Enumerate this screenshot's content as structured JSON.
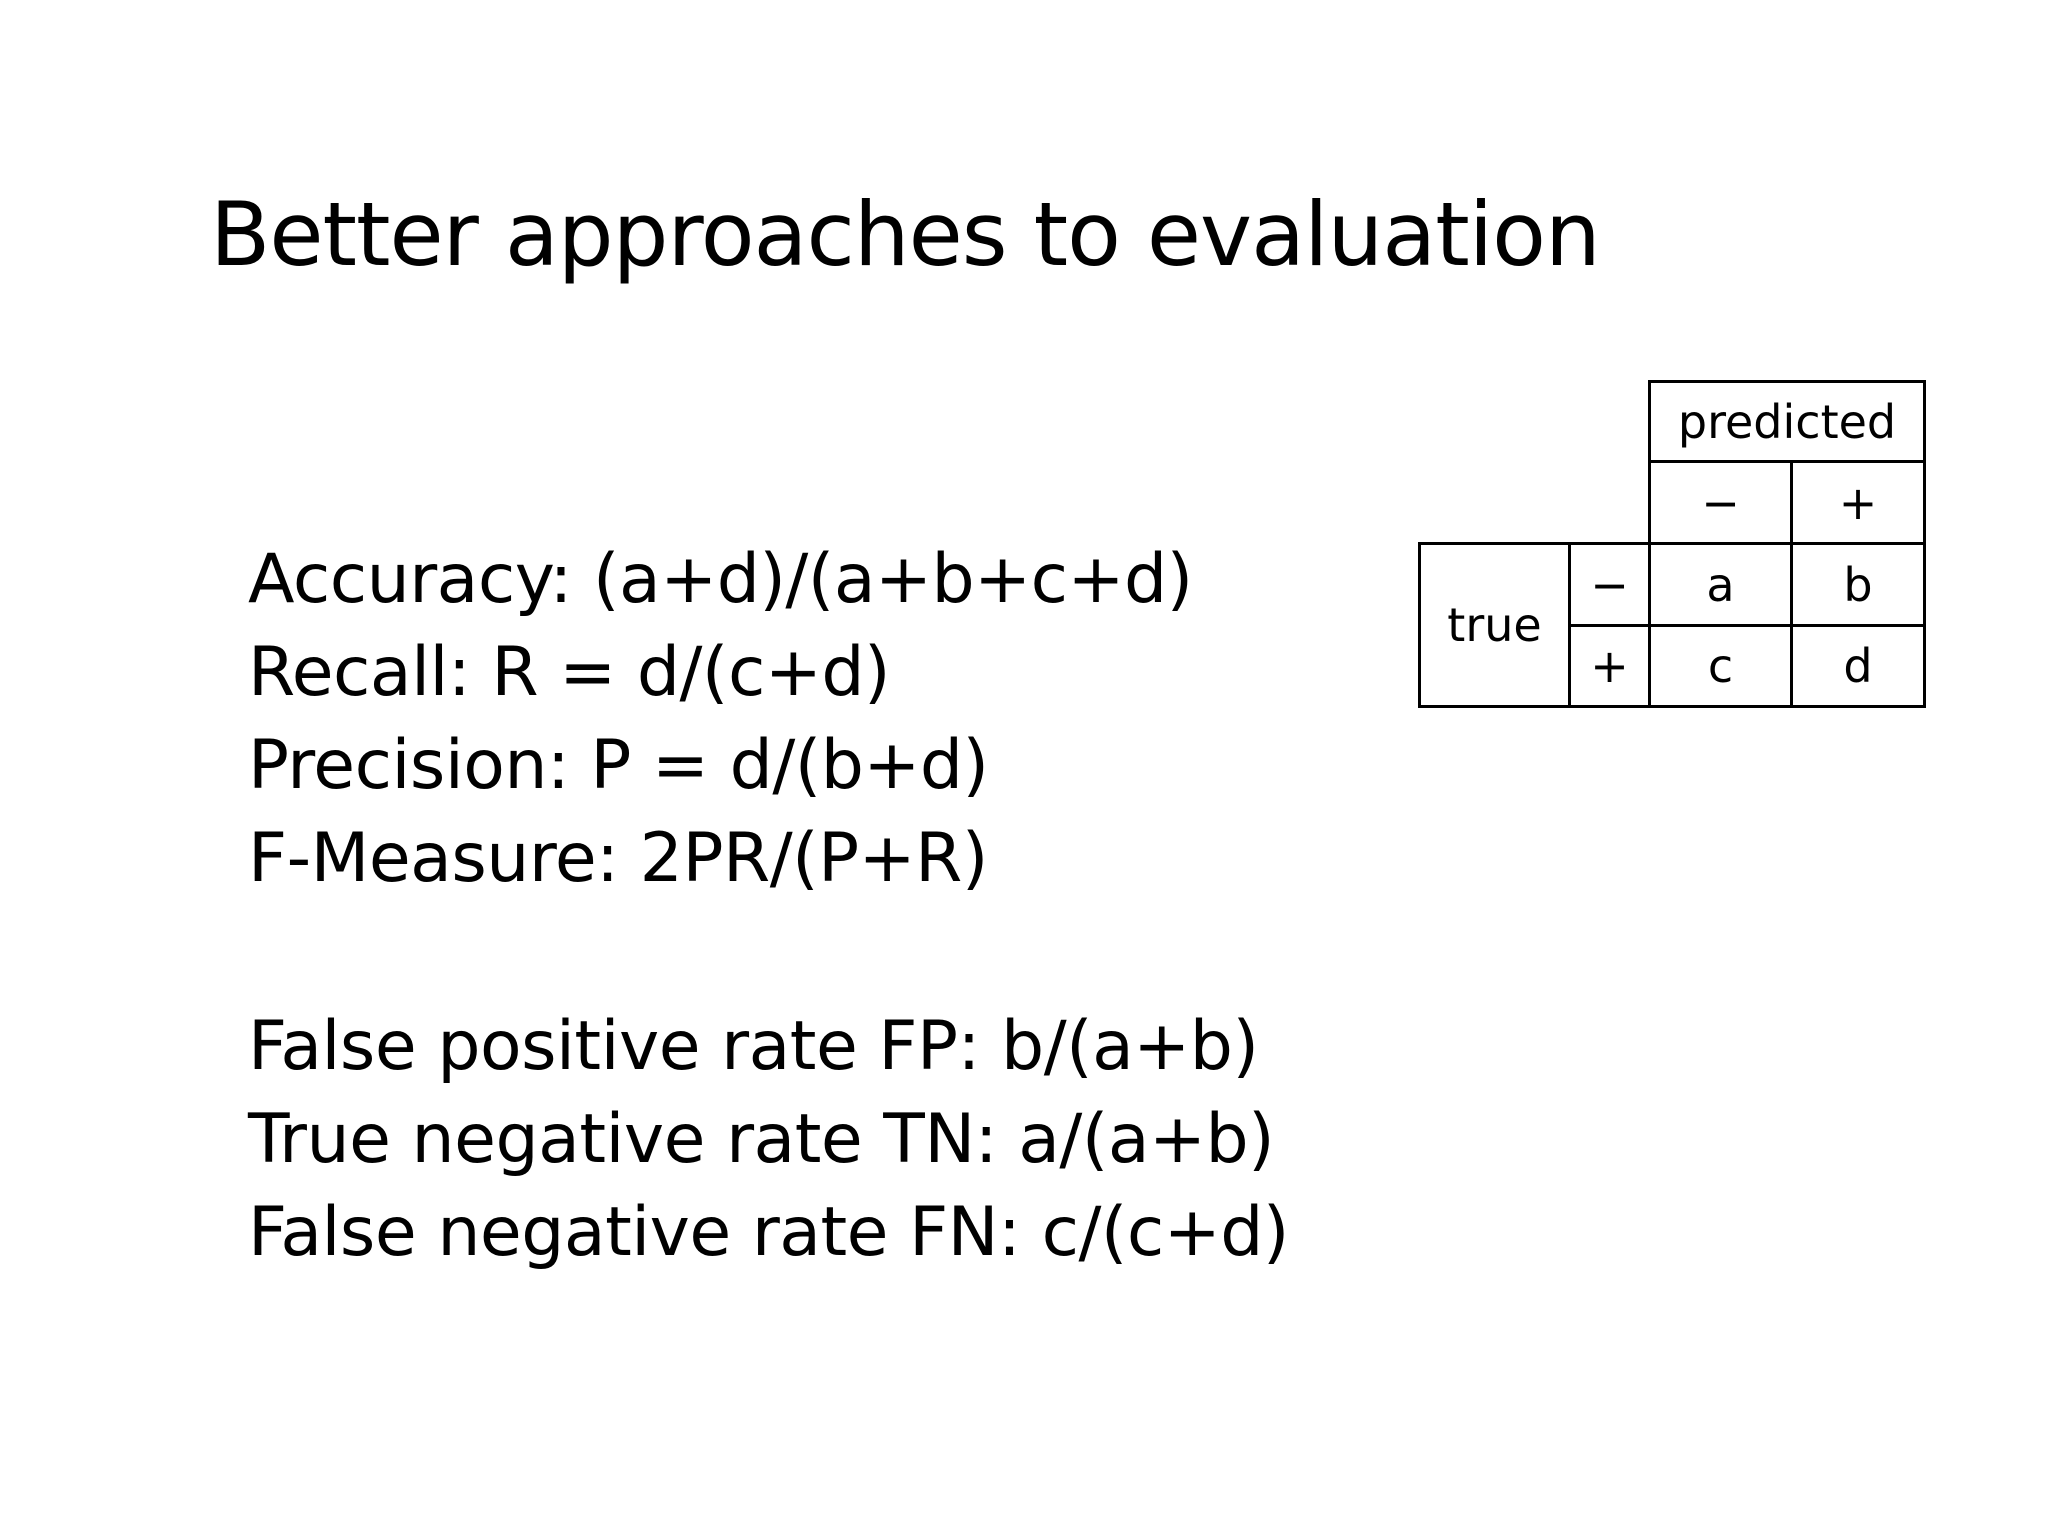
{
  "slide": {
    "title": "Better approaches to evaluation"
  },
  "formulas": {
    "group1": [
      "Accuracy: (a+d)/(a+b+c+d)",
      "Recall: R = d/(c+d)",
      "Precision: P = d/(b+d)",
      "F-Measure: 2PR/(P+R)"
    ],
    "group2": [
      "False positive rate FP: b/(a+b)",
      "True negative rate TN: a/(a+b)",
      "False negative rate FN: c/(c+d)"
    ]
  },
  "confusion_matrix": {
    "predicted_label": "predicted",
    "true_label": "true",
    "predicted_classes": [
      "−",
      "+"
    ],
    "true_classes": [
      "−",
      "+"
    ],
    "cells": [
      [
        "a",
        "b"
      ],
      [
        "c",
        "d"
      ]
    ]
  }
}
